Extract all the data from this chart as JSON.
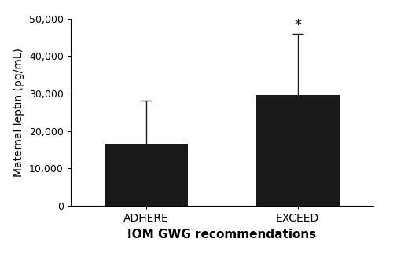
{
  "categories": [
    "ADHERE",
    "EXCEED"
  ],
  "values": [
    16500,
    29500
  ],
  "errors": [
    11500,
    16500
  ],
  "bar_color": "#1a1a1a",
  "bar_width": 0.55,
  "ylim": [
    0,
    50000
  ],
  "yticks": [
    0,
    10000,
    20000,
    30000,
    40000,
    50000
  ],
  "ylabel": "Maternal leptin (pg/mL)",
  "xlabel": "IOM GWG recommendations",
  "significance": [
    false,
    true
  ],
  "sig_symbol": "*",
  "background_color": "#ffffff",
  "error_capsize": 5,
  "error_linewidth": 1.0,
  "error_color": "#1a1a1a",
  "ylabel_fontsize": 10,
  "xlabel_fontsize": 11,
  "xtick_fontsize": 10,
  "ytick_fontsize": 9
}
